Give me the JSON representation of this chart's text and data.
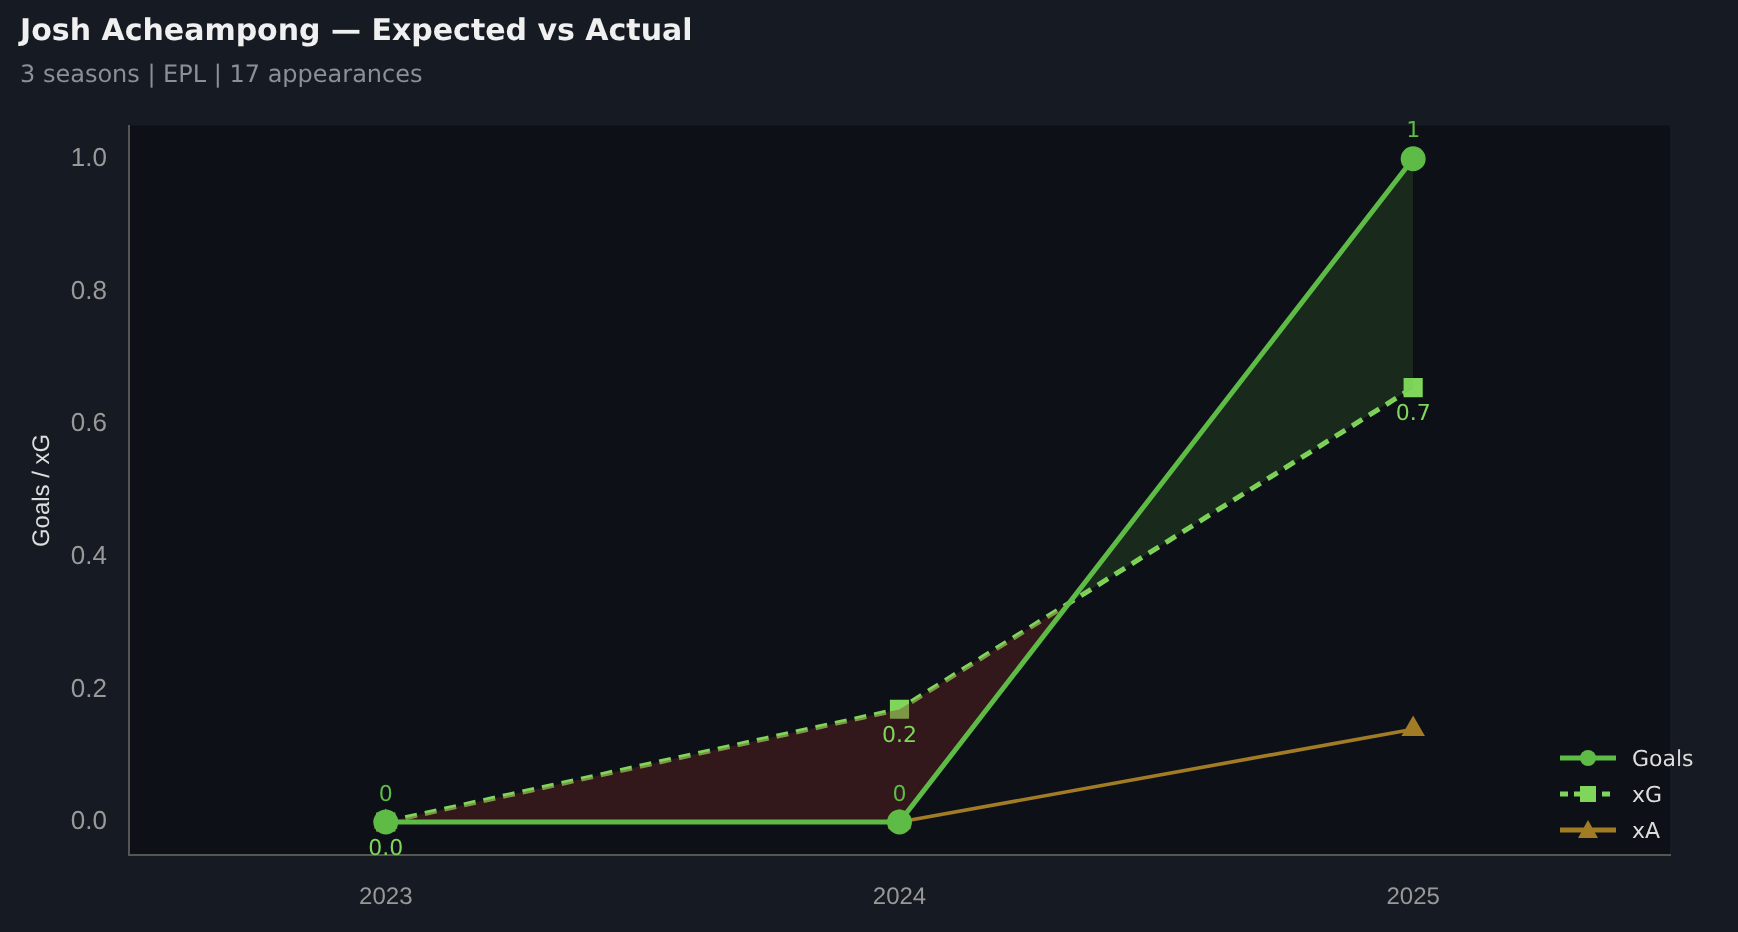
{
  "chart_data": {
    "type": "line",
    "title": "Josh Acheampong — Expected vs Actual",
    "subtitle": "3 seasons | EPL | 17 appearances",
    "ylabel": "Goals / xG",
    "categories": [
      "2023",
      "2024",
      "2025"
    ],
    "series": [
      {
        "name": "Goals",
        "color": "#5dbb46",
        "values": [
          0,
          0,
          1
        ],
        "marker": "circle",
        "line_style": "solid",
        "value_labels": [
          "0",
          "0",
          "1"
        ]
      },
      {
        "name": "xG",
        "color": "#7fd65a",
        "values": [
          0,
          0.17,
          0.655
        ],
        "marker": "square",
        "line_style": "dashed",
        "value_labels": [
          "0.0",
          "0.2",
          "0.7"
        ]
      },
      {
        "name": "xA",
        "color": "#a27c24",
        "values": [
          0,
          0,
          0.14
        ],
        "marker": "triangle",
        "line_style": "solid"
      }
    ],
    "ylim": [
      -0.05,
      1.05
    ],
    "yticks": [
      {
        "value": 0,
        "label": "0.0"
      },
      {
        "value": 0.2,
        "label": "0.2"
      },
      {
        "value": 0.4,
        "label": "0.4"
      },
      {
        "value": 0.6,
        "label": "0.6"
      },
      {
        "value": 0.8,
        "label": "0.8"
      },
      {
        "value": 1,
        "label": "1.0"
      }
    ],
    "grid": false,
    "legend": "bottom right"
  }
}
